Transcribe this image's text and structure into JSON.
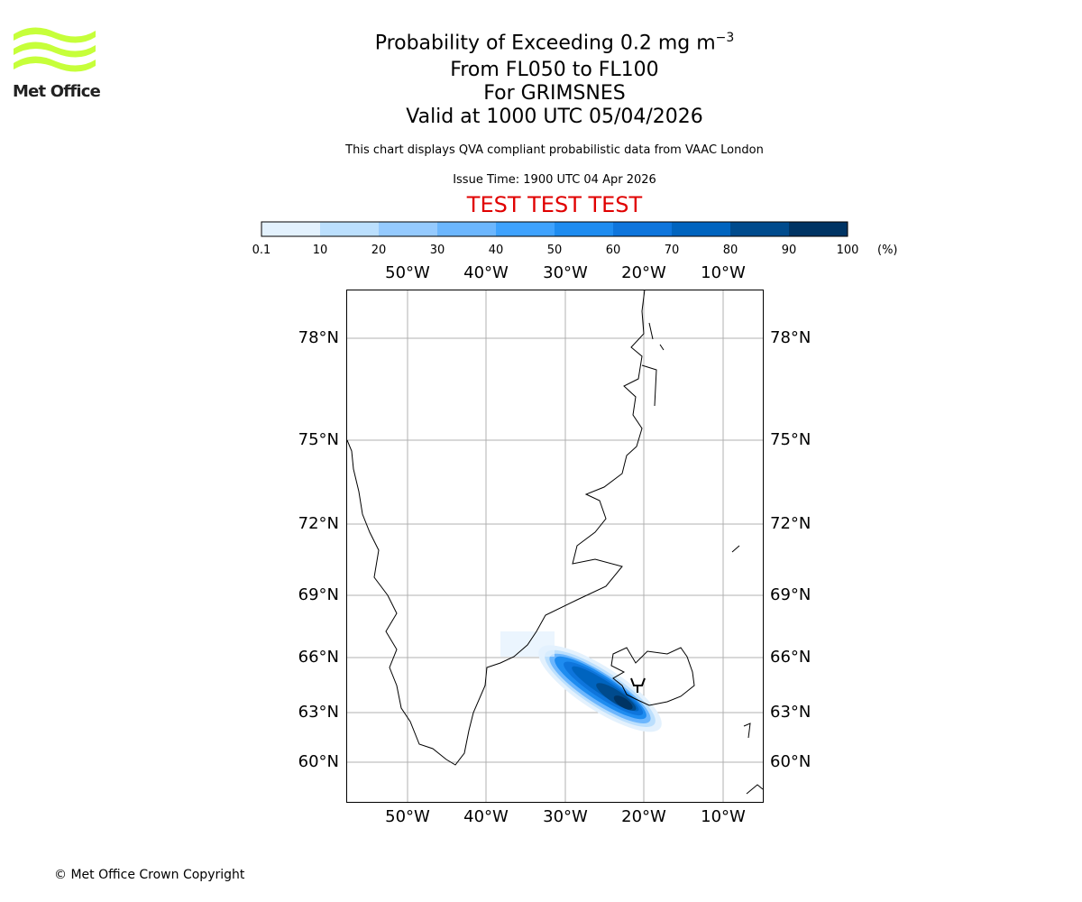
{
  "logo": {
    "text": "Met Office",
    "color": "#c6ff3a"
  },
  "header": {
    "title_main": "Probability of Exceeding 0.2 mg m",
    "title_sup": "−3",
    "levels": "From FL050 to FL100",
    "volcano": "For GRIMSNES",
    "valid": "Valid at 1000 UTC 05/04/2026",
    "note": "This chart displays QVA compliant probabilistic data from VAAC London",
    "issue": "Issue Time: 1900 UTC 04 Apr 2026",
    "test_banner": "TEST TEST TEST",
    "test_color": "#e00000"
  },
  "colorbar": {
    "ticks": [
      "0.1",
      "10",
      "20",
      "30",
      "40",
      "50",
      "60",
      "70",
      "80",
      "90",
      "100"
    ],
    "unit": "(%)",
    "colors": [
      "#e3f1fd",
      "#bbdffd",
      "#95cafe",
      "#6cb6fd",
      "#3ea2fd",
      "#1e8cf0",
      "#0e75dc",
      "#0064bf",
      "#004b8d",
      "#003464"
    ]
  },
  "chart_data": {
    "type": "heatmap",
    "projection": "map",
    "lon_ticks": [
      "50°W",
      "40°W",
      "30°W",
      "20°W",
      "10°W"
    ],
    "lat_ticks": [
      "78°N",
      "75°N",
      "72°N",
      "69°N",
      "66°N",
      "63°N",
      "60°N"
    ],
    "lon_range": [
      -58,
      -5
    ],
    "lat_range": [
      58,
      80
    ],
    "plume": {
      "peak_probability_pct": 100,
      "center_lat": 64,
      "center_lon": -25,
      "orientation": "NW-SE"
    }
  },
  "footer": {
    "copyright": "© Met Office Crown Copyright"
  }
}
